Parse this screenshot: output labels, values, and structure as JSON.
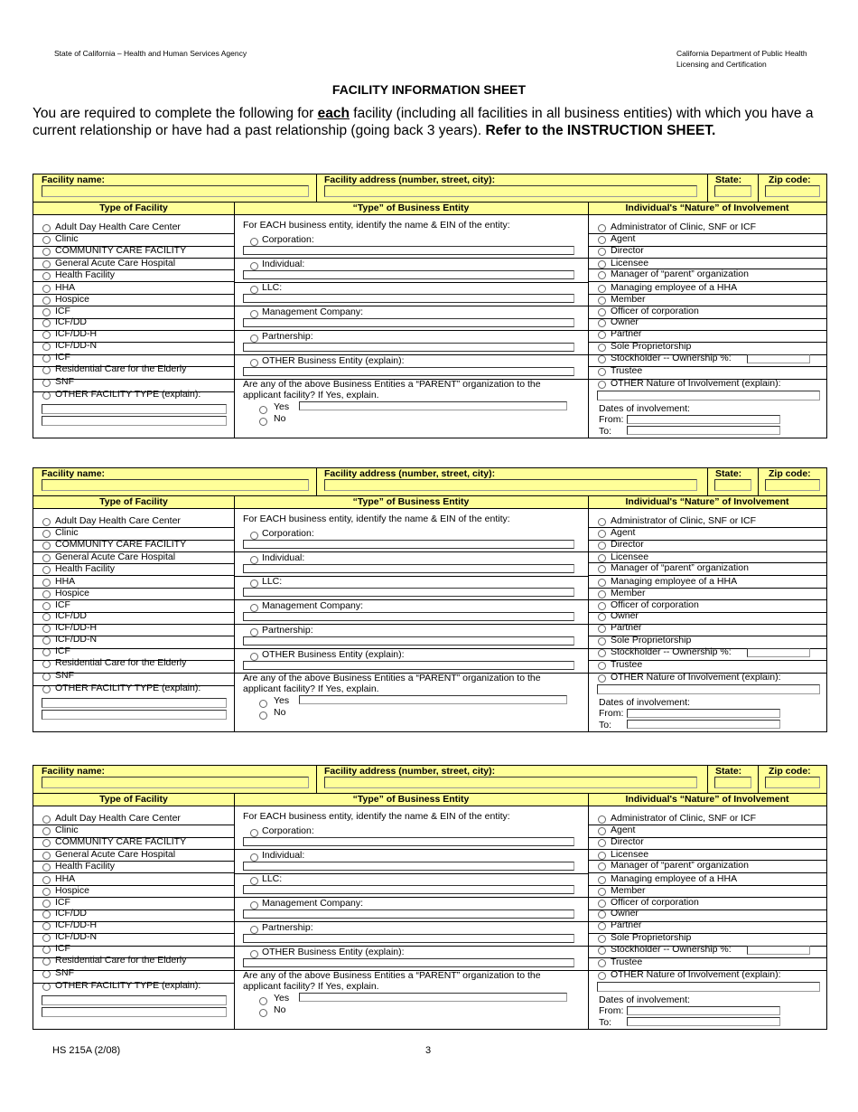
{
  "header": {
    "left": "State of California – Health and Human Services Agency",
    "right_line1": "California Department of Public Health",
    "right_line2": "Licensing and Certification"
  },
  "title": "FACILITY INFORMATION SHEET",
  "intro": {
    "part1": "You are required to complete the following for ",
    "emphasis": "each",
    "part2": " facility (including all facilities in all business entities) with which you have a current relationship or have had a past relationship (going back 3 years).   ",
    "bold": "Refer to the INSTRUCTION SHEET."
  },
  "facility_block": {
    "facility_name_label": "Facility name:",
    "facility_name_value": "",
    "address_label": "Facility address (number, street, city):",
    "address_value": "",
    "state_label": "State:",
    "state_value": "",
    "zip_label": "Zip code:",
    "zip_value": "",
    "col_type_facility": "Type of Facility",
    "col_business_entity": "“Type” of  Business Entity",
    "col_nature": "Individual's  “Nature” of Involvement",
    "facility_types": [
      "Adult Day Health Care Center",
      "Clinic",
      "COMMUNITY CARE FACILITY",
      "General Acute Care Hospital",
      "Health Facility",
      "HHA",
      "Hospice",
      "ICF",
      "ICF/DD",
      "ICF/DD-H",
      "ICF/DD-N",
      "ICF",
      "Residential Care for the Elderly",
      "SNF",
      "OTHER FACILITY TYPE (explain):"
    ],
    "entity_intro": "For EACH business entity, identify the name & EIN of the entity:",
    "entities": [
      "Corporation:",
      "Individual:",
      "LLC:",
      "Management Company:",
      "Partnership:",
      "OTHER Business Entity (explain):"
    ],
    "parent_question_line1": "Are any of the above Business Entities a “PARENT” organization to the",
    "parent_question_line2": "applicant facility?  If Yes, explain.",
    "yes_label": "Yes",
    "no_label": "No",
    "natures": [
      "Administrator of Clinic, SNF or ICF",
      "Agent",
      "Director",
      "Licensee",
      "Manager of “parent” organization",
      "Managing employee of a HHA",
      "Member",
      "Officer of corporation",
      "Owner",
      "Partner",
      "Sole Proprietorship",
      "Stockholder --  Ownership %:",
      "Trustee",
      "OTHER Nature of Involvement (explain):"
    ],
    "dates_label": "Dates of involvement:",
    "from_label": "From:",
    "to_label": "To:"
  },
  "footer": {
    "form_id": "HS 215A (2/08)",
    "page_number": "3"
  },
  "colors": {
    "header_fill": "#ffff99",
    "border": "#000000"
  }
}
